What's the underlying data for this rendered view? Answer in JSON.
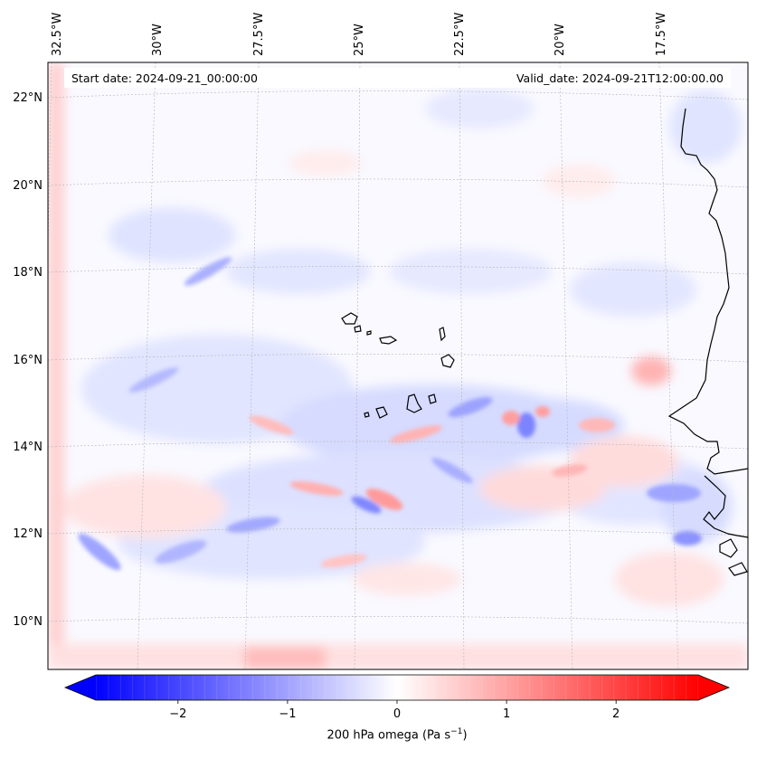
{
  "map": {
    "start_date_text": "Start date: 2024-09-21_00:00:00",
    "valid_date_text": "Valid_date: 2024-09-21T12:00:00.00",
    "lon_labels": [
      "32.5°W",
      "30°W",
      "27.5°W",
      "25°W",
      "22.5°W",
      "20°W",
      "17.5°W"
    ],
    "lat_labels": [
      "22°N",
      "20°N",
      "18°N",
      "16°N",
      "14°N",
      "12°N",
      "10°N"
    ],
    "lon_values": [
      -32.5,
      -30,
      -27.5,
      -25,
      -22.5,
      -20,
      -17.5
    ],
    "lat_values": [
      22,
      20,
      18,
      16,
      14,
      12,
      10
    ]
  },
  "colorbar": {
    "label_prefix": "200 hPa omega (Pa s",
    "label_exp": "−1",
    "label_suffix": ")",
    "ticks": [
      "−2",
      "−1",
      "0",
      "1",
      "2"
    ],
    "tick_values": [
      -2,
      -1,
      0,
      1,
      2
    ],
    "range": [
      -2.75,
      2.75
    ],
    "extend": "both",
    "colormap": "bwr",
    "color_low": "#0000ff",
    "color_mid": "#ffffff",
    "color_high": "#ff0000"
  }
}
